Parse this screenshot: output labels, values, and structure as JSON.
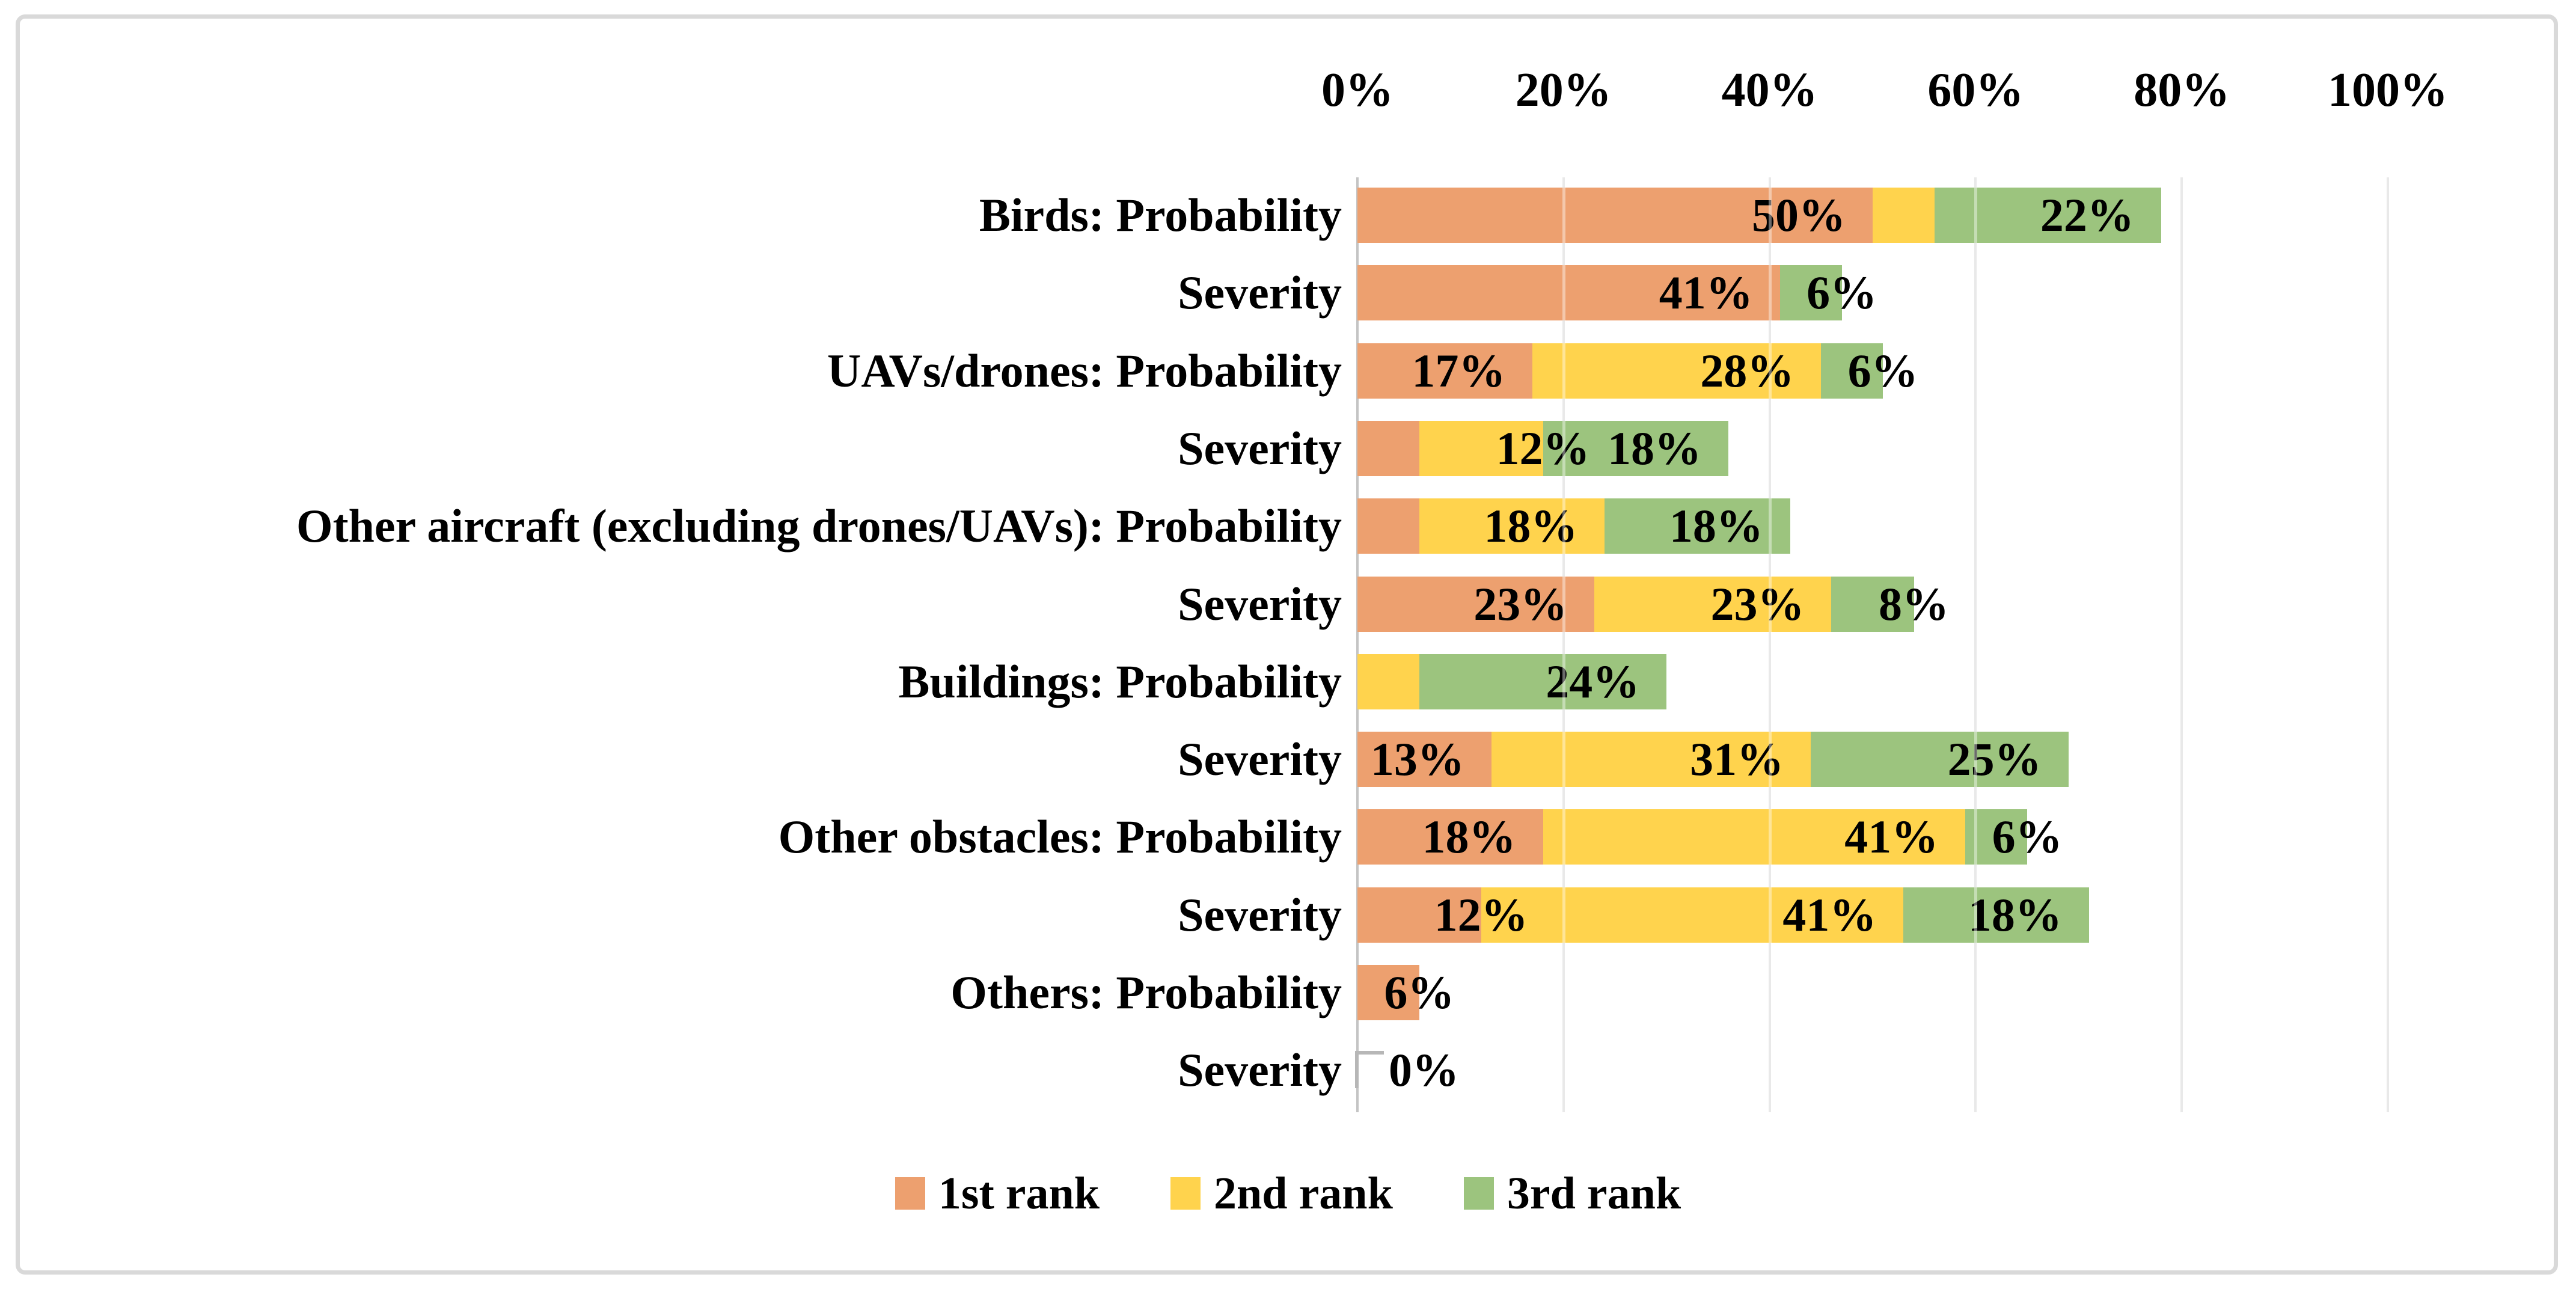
{
  "figure": {
    "background": "#ffffff",
    "border_color": "#d9d9d9"
  },
  "colors": {
    "rank1": "#eda06f",
    "rank2": "#ffd34d",
    "rank3": "#9cc47e",
    "gridline": "#d9d9d9",
    "axis_line": "#c4c4c4",
    "leader_line": "#b7b7b7",
    "text": "#000000"
  },
  "chart_data": {
    "type": "bar",
    "orientation": "horizontal",
    "stacked": true,
    "title": "",
    "x_axis": {
      "position": "top",
      "min": 0,
      "max": 100,
      "tick_step": 20,
      "ticks": [
        "0%",
        "20%",
        "40%",
        "60%",
        "80%",
        "100%"
      ],
      "grid": true
    },
    "series_names": [
      "1st rank",
      "2nd rank",
      "3rd rank"
    ],
    "legend": {
      "position": "bottom",
      "entries": [
        {
          "name": "1st rank",
          "color": "#eda06f"
        },
        {
          "name": "2nd rank",
          "color": "#ffd34d"
        },
        {
          "name": "3rd rank",
          "color": "#9cc47e"
        }
      ]
    },
    "categories": [
      "Birds: Probability",
      "Severity",
      "UAVs/drones: Probability",
      "Severity",
      "Other aircraft (excluding drones/UAVs): Probability",
      "Severity",
      "Buildings: Probability",
      "Severity",
      "Other obstacles: Probability",
      "Severity",
      "Others: Probability",
      "Severity"
    ],
    "rows": [
      {
        "category": "Birds: Probability",
        "segments": [
          {
            "series": "1st rank",
            "value": 50,
            "label": "50%"
          },
          {
            "series": "2nd rank",
            "value": 6,
            "label": ""
          },
          {
            "series": "3rd rank",
            "value": 22,
            "label": "22%"
          }
        ]
      },
      {
        "category": "Severity",
        "segments": [
          {
            "series": "1st rank",
            "value": 41,
            "label": "41%"
          },
          {
            "series": "3rd rank",
            "value": 6,
            "label": "6%"
          }
        ]
      },
      {
        "category": "UAVs/drones: Probability",
        "segments": [
          {
            "series": "1st rank",
            "value": 17,
            "label": "17%"
          },
          {
            "series": "2nd rank",
            "value": 28,
            "label": "28%"
          },
          {
            "series": "3rd rank",
            "value": 6,
            "label": "6%"
          }
        ]
      },
      {
        "category": "Severity",
        "segments": [
          {
            "series": "1st rank",
            "value": 6,
            "label": ""
          },
          {
            "series": "2nd rank",
            "value": 12,
            "label": "12%"
          },
          {
            "series": "3rd rank",
            "value": 18,
            "label": "18%"
          }
        ]
      },
      {
        "category": "Other aircraft (excluding drones/UAVs): Probability",
        "segments": [
          {
            "series": "1st rank",
            "value": 6,
            "label": ""
          },
          {
            "series": "2nd rank",
            "value": 18,
            "label": "18%"
          },
          {
            "series": "3rd rank",
            "value": 18,
            "label": "18%"
          }
        ]
      },
      {
        "category": "Severity",
        "segments": [
          {
            "series": "1st rank",
            "value": 23,
            "label": "23%"
          },
          {
            "series": "2nd rank",
            "value": 23,
            "label": "23%"
          },
          {
            "series": "3rd rank",
            "value": 8,
            "label": "8%"
          }
        ]
      },
      {
        "category": "Buildings: Probability",
        "segments": [
          {
            "series": "2nd rank",
            "value": 6,
            "label": ""
          },
          {
            "series": "3rd rank",
            "value": 24,
            "label": "24%"
          }
        ]
      },
      {
        "category": "Severity",
        "segments": [
          {
            "series": "1st rank",
            "value": 13,
            "label": "13%"
          },
          {
            "series": "2nd rank",
            "value": 31,
            "label": "31%"
          },
          {
            "series": "3rd rank",
            "value": 25,
            "label": "25%"
          }
        ]
      },
      {
        "category": "Other obstacles: Probability",
        "segments": [
          {
            "series": "1st rank",
            "value": 18,
            "label": "18%"
          },
          {
            "series": "2nd rank",
            "value": 41,
            "label": "41%"
          },
          {
            "series": "3rd rank",
            "value": 6,
            "label": "6%"
          }
        ]
      },
      {
        "category": "Severity",
        "segments": [
          {
            "series": "1st rank",
            "value": 12,
            "label": "12%"
          },
          {
            "series": "2nd rank",
            "value": 41,
            "label": "41%"
          },
          {
            "series": "3rd rank",
            "value": 18,
            "label": "18%"
          }
        ]
      },
      {
        "category": "Others: Probability",
        "segments": [
          {
            "series": "1st rank",
            "value": 6,
            "label": "6%"
          }
        ]
      },
      {
        "category": "Severity",
        "segments": [],
        "zero_label": "0%"
      }
    ]
  }
}
